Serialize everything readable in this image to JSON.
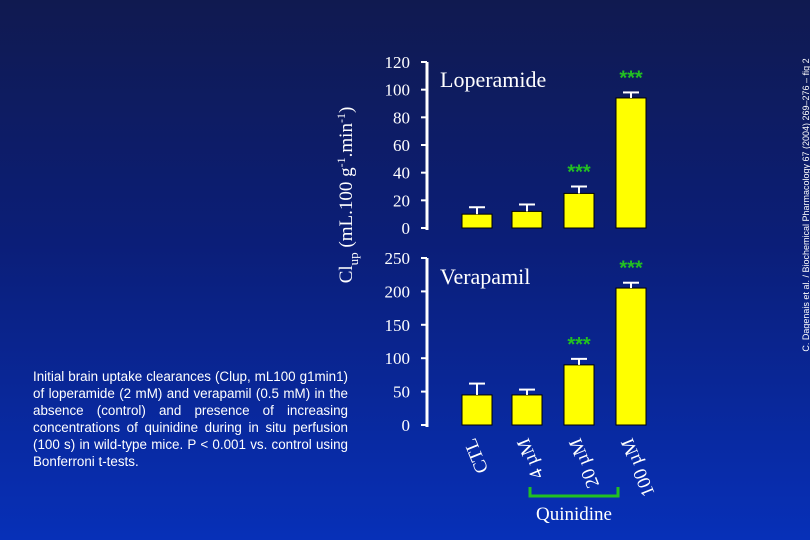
{
  "chart_data": [
    {
      "type": "bar",
      "title": "Loperamide",
      "categories": [
        "CTL",
        "4 µM",
        "20 µM",
        "100 µM"
      ],
      "values": [
        10,
        12,
        25,
        94
      ],
      "errors": [
        5,
        5,
        5,
        4
      ],
      "significance": [
        "",
        "",
        "***",
        "***"
      ],
      "yticks": [
        0,
        20,
        40,
        60,
        80,
        100,
        120
      ],
      "ylim": [
        0,
        120
      ],
      "bar_color": "#ffff00",
      "star_color": "#22c022"
    },
    {
      "type": "bar",
      "title": "Verapamil",
      "categories": [
        "CTL",
        "4 µM",
        "20 µM",
        "100 µM"
      ],
      "values": [
        45,
        45,
        90,
        205
      ],
      "errors": [
        17,
        8,
        9,
        8
      ],
      "significance": [
        "",
        "",
        "***",
        "***"
      ],
      "yticks": [
        0,
        50,
        100,
        150,
        200,
        250
      ],
      "ylim": [
        0,
        250
      ],
      "bar_color": "#ffff00",
      "star_color": "#22c022"
    }
  ],
  "axes": {
    "ylabel_main": "Cl",
    "ylabel_sub": "up",
    "ylabel_rest": " (mL.100 g",
    "ylabel_sup1": "-1",
    "ylabel_mid": ".min",
    "ylabel_sup2": "-1",
    "ylabel_end": ")",
    "group_label": "Quinidine",
    "category_labels": [
      "CTL",
      "4 µM",
      "20 µM",
      "100 µM"
    ]
  },
  "caption": "Initial brain uptake clearances (Clup, mL100 g1min1) of loperamide (2 mM) and verapamil (0.5 mM) in the absence (control) and presence of increasing concentrations of quinidine during in situ perfusion (100 s) in wild-type mice. P < 0.001 vs. control using Bonferroni t-tests.",
  "credit": "C. Dagenais et al. / Biochemical Pharmacology 67 (2004) 269–276 – fig 2"
}
